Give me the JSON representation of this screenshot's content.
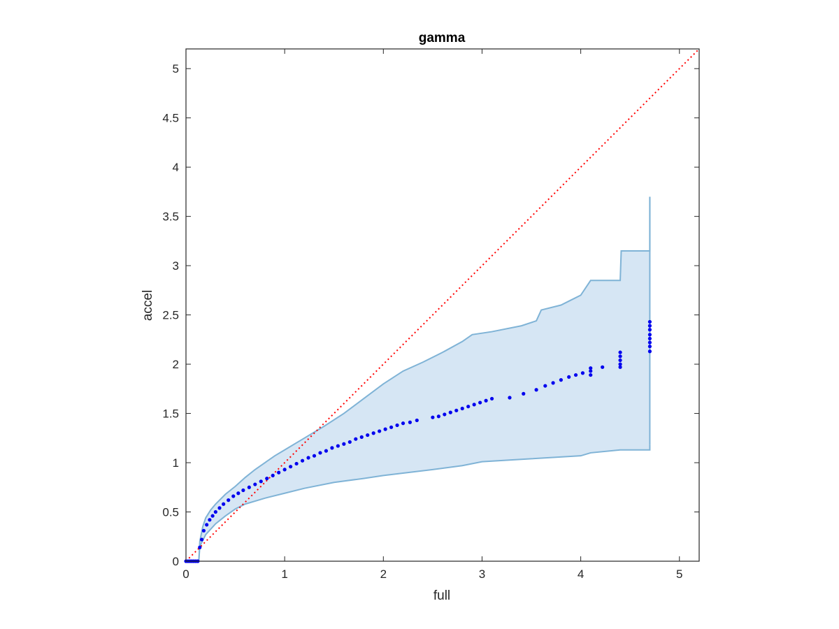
{
  "chart_data": {
    "type": "scatter",
    "title": "gamma",
    "xlabel": "full",
    "ylabel": "accel",
    "xlim": [
      0,
      5.2
    ],
    "ylim": [
      0,
      5.2
    ],
    "xticks": [
      0,
      1,
      2,
      3,
      4,
      5
    ],
    "yticks": [
      0,
      0.5,
      1,
      1.5,
      2,
      2.5,
      3,
      3.5,
      4,
      4.5,
      5
    ],
    "xtick_labels": [
      "0",
      "1",
      "2",
      "3",
      "4",
      "5"
    ],
    "ytick_labels": [
      "0",
      "0.5",
      "1",
      "1.5",
      "2",
      "2.5",
      "3",
      "3.5",
      "4",
      "4.5",
      "5"
    ],
    "grid": false,
    "colors": {
      "points": "#0000ee",
      "band_fill": "#d6e6f4",
      "band_edge": "#7fb3d6",
      "reference": "#ff0000",
      "axes": "#262626"
    },
    "reference_line": {
      "style": "dotted",
      "x": [
        0,
        5.2
      ],
      "y": [
        0,
        5.2
      ]
    },
    "band": {
      "upper": [
        [
          0.13,
          0
        ],
        [
          0.14,
          0.2
        ],
        [
          0.17,
          0.35
        ],
        [
          0.2,
          0.44
        ],
        [
          0.25,
          0.52
        ],
        [
          0.3,
          0.58
        ],
        [
          0.4,
          0.68
        ],
        [
          0.5,
          0.76
        ],
        [
          0.6,
          0.85
        ],
        [
          0.7,
          0.93
        ],
        [
          0.8,
          1.0
        ],
        [
          0.9,
          1.07
        ],
        [
          1.0,
          1.13
        ],
        [
          1.2,
          1.25
        ],
        [
          1.4,
          1.37
        ],
        [
          1.6,
          1.5
        ],
        [
          1.8,
          1.65
        ],
        [
          2.0,
          1.8
        ],
        [
          2.2,
          1.93
        ],
        [
          2.4,
          2.02
        ],
        [
          2.6,
          2.12
        ],
        [
          2.8,
          2.23
        ],
        [
          2.9,
          2.3
        ],
        [
          3.1,
          2.33
        ],
        [
          3.4,
          2.39
        ],
        [
          3.55,
          2.44
        ],
        [
          3.6,
          2.55
        ],
        [
          3.8,
          2.6
        ],
        [
          3.9,
          2.65
        ],
        [
          4.0,
          2.7
        ],
        [
          4.1,
          2.85
        ],
        [
          4.4,
          2.85
        ],
        [
          4.41,
          3.15
        ],
        [
          4.7,
          3.15
        ],
        [
          4.7,
          3.7
        ]
      ],
      "lower": [
        [
          0.13,
          0
        ],
        [
          0.14,
          0.15
        ],
        [
          0.2,
          0.27
        ],
        [
          0.3,
          0.38
        ],
        [
          0.4,
          0.46
        ],
        [
          0.5,
          0.53
        ],
        [
          0.6,
          0.58
        ],
        [
          0.8,
          0.64
        ],
        [
          1.0,
          0.69
        ],
        [
          1.2,
          0.74
        ],
        [
          1.5,
          0.8
        ],
        [
          1.8,
          0.84
        ],
        [
          2.0,
          0.87
        ],
        [
          2.5,
          0.93
        ],
        [
          2.8,
          0.97
        ],
        [
          3.0,
          1.01
        ],
        [
          3.5,
          1.04
        ],
        [
          4.0,
          1.07
        ],
        [
          4.1,
          1.1
        ],
        [
          4.4,
          1.13
        ],
        [
          4.7,
          1.13
        ],
        [
          4.7,
          1.18
        ]
      ]
    },
    "series": [
      {
        "x": [
          0.0,
          0.02,
          0.04,
          0.06,
          0.08,
          0.1,
          0.12,
          0.14,
          0.16,
          0.18,
          0.21,
          0.24,
          0.27,
          0.3,
          0.34,
          0.38,
          0.43,
          0.48,
          0.53,
          0.58,
          0.64,
          0.7,
          0.76,
          0.82,
          0.88,
          0.94,
          1.0,
          1.06,
          1.12,
          1.18,
          1.24,
          1.3,
          1.36,
          1.42,
          1.48,
          1.54,
          1.6,
          1.66,
          1.72,
          1.78,
          1.84,
          1.9,
          1.96,
          2.02,
          2.08,
          2.14,
          2.2,
          2.27,
          2.34,
          2.5,
          2.56,
          2.62,
          2.68,
          2.74,
          2.8,
          2.86,
          2.92,
          2.98,
          3.04,
          3.1,
          3.28,
          3.42,
          3.55,
          3.64,
          3.72,
          3.8,
          3.88,
          3.95,
          4.02,
          4.1,
          4.1,
          4.1,
          4.22,
          4.4,
          4.4,
          4.4,
          4.4,
          4.4,
          4.7,
          4.7,
          4.7,
          4.7,
          4.7,
          4.7,
          4.7,
          4.7
        ],
        "y": [
          0.0,
          0.0,
          0.0,
          0.0,
          0.0,
          0.0,
          0.0,
          0.14,
          0.22,
          0.31,
          0.37,
          0.42,
          0.46,
          0.5,
          0.54,
          0.58,
          0.62,
          0.66,
          0.69,
          0.72,
          0.75,
          0.78,
          0.81,
          0.84,
          0.87,
          0.9,
          0.93,
          0.96,
          0.99,
          1.02,
          1.05,
          1.07,
          1.1,
          1.12,
          1.15,
          1.17,
          1.19,
          1.21,
          1.24,
          1.26,
          1.28,
          1.3,
          1.32,
          1.34,
          1.36,
          1.38,
          1.4,
          1.41,
          1.43,
          1.46,
          1.47,
          1.49,
          1.51,
          1.53,
          1.55,
          1.57,
          1.59,
          1.61,
          1.63,
          1.65,
          1.66,
          1.7,
          1.74,
          1.78,
          1.81,
          1.84,
          1.87,
          1.89,
          1.91,
          1.93,
          1.89,
          1.96,
          1.97,
          1.97,
          2.0,
          2.04,
          2.08,
          2.12,
          2.13,
          2.18,
          2.22,
          2.26,
          2.3,
          2.35,
          2.39,
          2.43
        ]
      }
    ]
  }
}
